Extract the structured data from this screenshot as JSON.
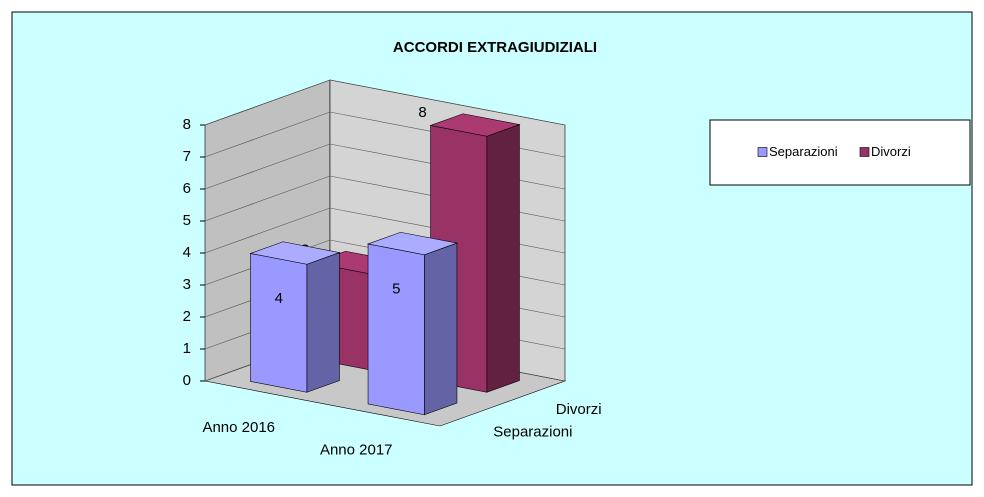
{
  "chart_data": {
    "type": "bar3d",
    "title": "ACCORDI  EXTRAGIUDIZIALI",
    "categories": [
      "Anno 2016",
      "Anno 2017"
    ],
    "series": [
      {
        "name": "Separazioni",
        "color": "#9999ff",
        "values": [
          4,
          5
        ]
      },
      {
        "name": "Divorzi",
        "color": "#993366",
        "values": [
          3,
          8
        ]
      }
    ],
    "ylim": [
      0,
      8
    ],
    "yticks": [
      0,
      1,
      2,
      3,
      4,
      5,
      6,
      7,
      8
    ],
    "grid": true,
    "legend": "right"
  }
}
